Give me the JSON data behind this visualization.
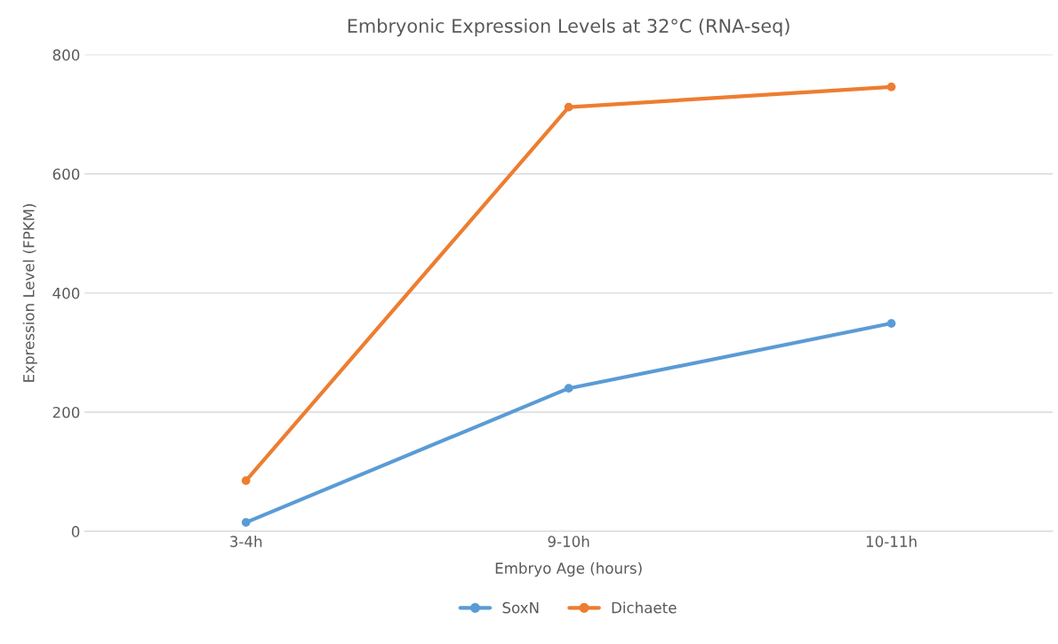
{
  "chart_data": {
    "type": "line",
    "title": "Embryonic Expression Levels at 32°C (RNA-seq)",
    "xlabel": "Embryo Age (hours)",
    "ylabel": "Expression Level (FPKM)",
    "categories": [
      "3-4h",
      "9-10h",
      "10-11h"
    ],
    "series": [
      {
        "name": "SoxN",
        "color": "#5b9bd5",
        "values": [
          15,
          240,
          349
        ]
      },
      {
        "name": "Dichaete",
        "color": "#ed7d31",
        "values": [
          85,
          712,
          746
        ]
      }
    ],
    "ylim": [
      0,
      800
    ],
    "yticks": [
      0,
      200,
      400,
      600,
      800
    ],
    "grid": "y",
    "legend": "bottom",
    "marker": "circle",
    "line_style": "solid"
  }
}
